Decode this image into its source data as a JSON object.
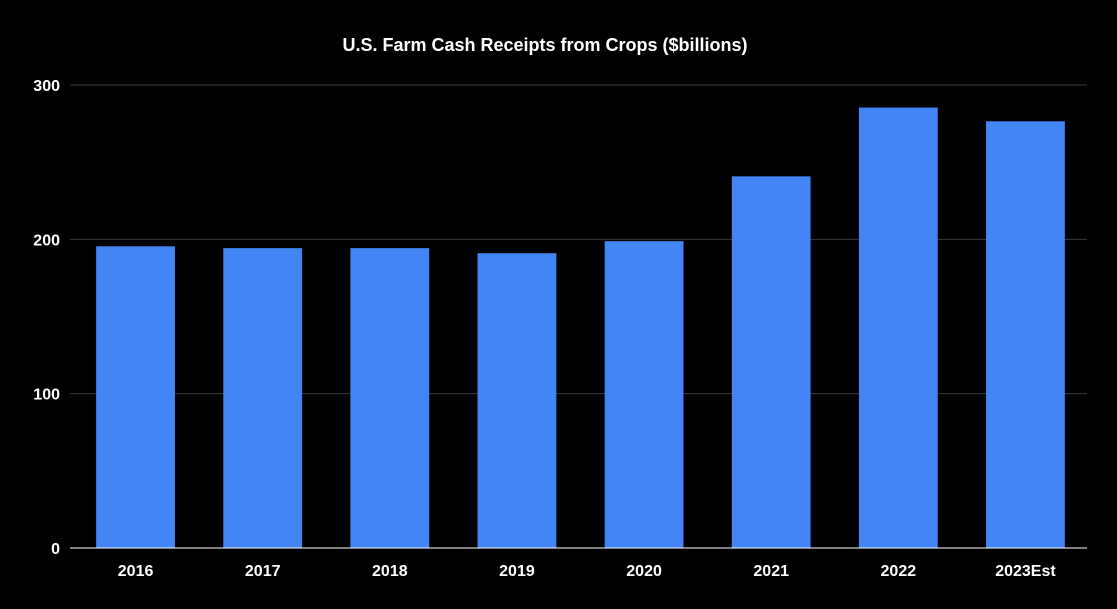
{
  "chart_data": {
    "type": "bar",
    "title": "U.S. Farm Cash Receipts from Crops ($billions)",
    "xlabel": "",
    "ylabel": "",
    "categories": [
      "2016",
      "2017",
      "2018",
      "2019",
      "2020",
      "2021",
      "2022",
      "2023Est"
    ],
    "values": [
      195.5,
      194.3,
      194.3,
      191.0,
      198.8,
      240.8,
      285.4,
      276.5
    ],
    "ylim": [
      0,
      300
    ],
    "yticks": [
      0,
      100,
      200,
      300
    ],
    "grid": true,
    "legend": "none",
    "colors": {
      "bar": "#4285f4",
      "background": "#000000",
      "text": "#ffffff",
      "grid": "#3a3a3a"
    }
  }
}
